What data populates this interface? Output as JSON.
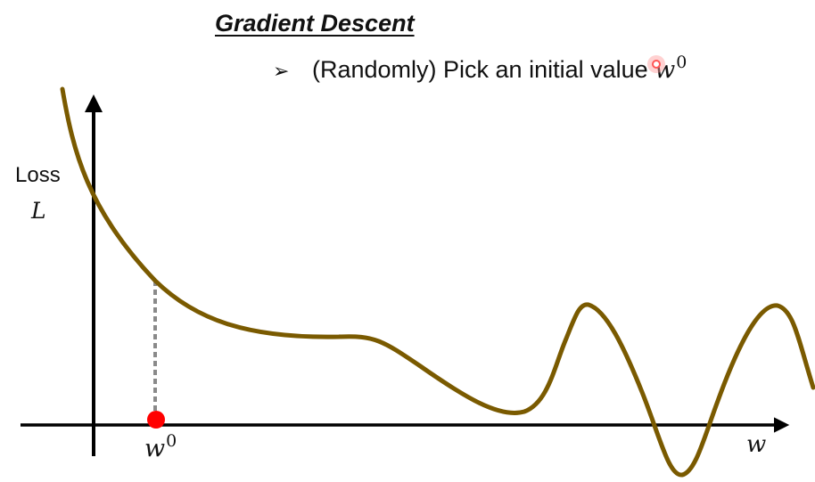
{
  "slide": {
    "title": "Gradient Descent",
    "bullet_marker": "➢",
    "bullet_text": "(Randomly) Pick an initial value ",
    "bullet_math_var": "w",
    "bullet_math_sup": "0"
  },
  "axes": {
    "y_label_word": "Loss",
    "y_label_symbol": "L",
    "x_label": "w",
    "initial_point_var": "w",
    "initial_point_sup": "0"
  },
  "colors": {
    "curve": "#7a5a00",
    "axis": "#000000",
    "initial_point": "#ff0000",
    "dashed_line": "#8a8a8a",
    "pointer": "#ff5555"
  }
}
